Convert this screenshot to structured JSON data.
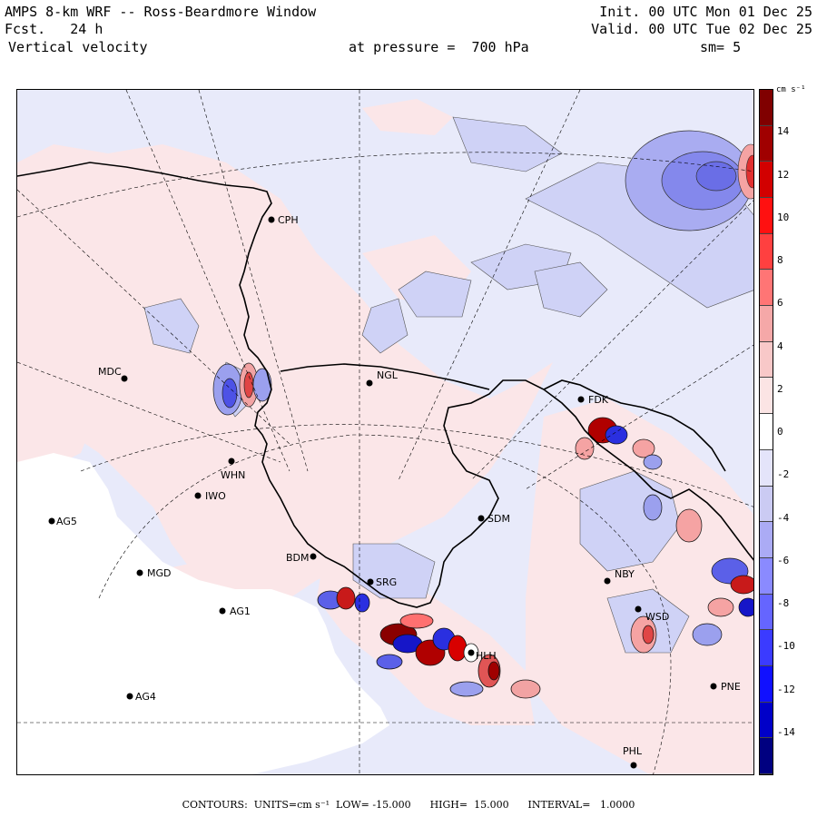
{
  "header": {
    "line1_left": "AMPS 8-km WRF -- Ross-Beardmore Window",
    "line2_left": "Fcst.   24 h",
    "line3_left": "Vertical velocity",
    "line1_right": "Init. 00 UTC Mon 01 Dec 25",
    "line2_right": "Valid. 00 UTC Tue 02 Dec 25",
    "pressure_label": "at pressure =  700 hPa",
    "smoothing": "sm= 5"
  },
  "colorbar": {
    "unit": "cm s⁻¹",
    "ticks": [
      "14",
      "12",
      "10",
      "8",
      "6",
      "4",
      "2",
      "0",
      "-2",
      "-4",
      "-6",
      "-8",
      "-10",
      "-12",
      "-14"
    ],
    "tick_values": [
      14,
      12,
      10,
      8,
      6,
      4,
      2,
      0,
      -2,
      -4,
      -6,
      -8,
      -10,
      -12,
      -14
    ],
    "min": -16,
    "max": 16,
    "colors": [
      "#000080",
      "#0000c8",
      "#1010ff",
      "#3b3bff",
      "#6565ff",
      "#8a8aff",
      "#ababf5",
      "#cbcbf3",
      "#e4e4fa",
      "#ffffff",
      "#fbe4e4",
      "#f8c8c8",
      "#f5a8a8",
      "#ff7575",
      "#ff4040",
      "#ff1010",
      "#d20000",
      "#a00000",
      "#800000"
    ]
  },
  "stations": [
    {
      "id": "CPH",
      "label": "CPH"
    },
    {
      "id": "NGL",
      "label": "NGL"
    },
    {
      "id": "MDC",
      "label": "MDC"
    },
    {
      "id": "FDK",
      "label": "FDK"
    },
    {
      "id": "WHN",
      "label": "WHN"
    },
    {
      "id": "IWO",
      "label": "IWO"
    },
    {
      "id": "AG5",
      "label": "AG5"
    },
    {
      "id": "SDM",
      "label": "SDM"
    },
    {
      "id": "BDM",
      "label": "BDM"
    },
    {
      "id": "MGD",
      "label": "MGD"
    },
    {
      "id": "SRG",
      "label": "SRG"
    },
    {
      "id": "NBY",
      "label": "NBY"
    },
    {
      "id": "AG1",
      "label": "AG1"
    },
    {
      "id": "WSD",
      "label": "WSD"
    },
    {
      "id": "HLH",
      "label": "HLH"
    },
    {
      "id": "PNE",
      "label": "PNE"
    },
    {
      "id": "AG4",
      "label": "AG4"
    },
    {
      "id": "PHL",
      "label": "PHL"
    }
  ],
  "footer": {
    "text": "CONTOURS:  UNITS=cm s⁻¹  LOW= -15.000      HIGH=  15.000      INTERVAL=   1.0000"
  }
}
